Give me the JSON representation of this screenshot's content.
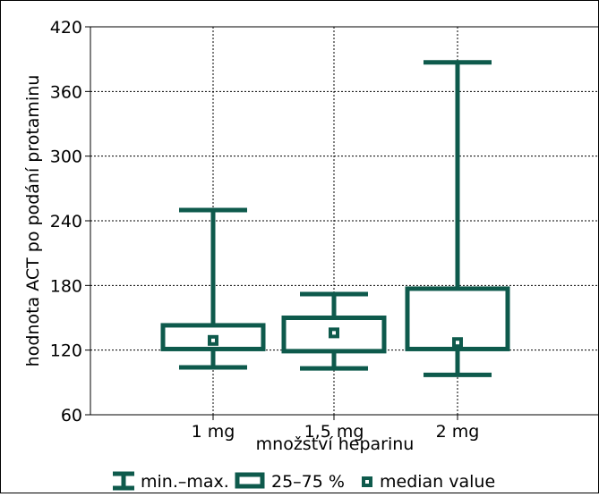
{
  "chart_data": {
    "type": "boxplot",
    "title": "",
    "xlabel": "množství heparinu",
    "ylabel": "hodnota ACT po podání protaminu",
    "ylim": [
      60,
      420
    ],
    "yticks": [
      60,
      120,
      180,
      240,
      300,
      360,
      420
    ],
    "grid": true,
    "categories": [
      "1 mg",
      "1,5 mg",
      "2 mg"
    ],
    "boxes": [
      {
        "category": "1 mg",
        "min": 104,
        "q1": 121,
        "median": 129,
        "q3": 143,
        "max": 250
      },
      {
        "category": "1,5 mg",
        "min": 103,
        "q1": 119,
        "median": 136,
        "q3": 150,
        "max": 172
      },
      {
        "category": "2 mg",
        "min": 97,
        "q1": 121,
        "median": 127,
        "q3": 177,
        "max": 387
      }
    ],
    "legend": {
      "placement": "bottom",
      "items": [
        {
          "key": "whisker",
          "label": "min.–max."
        },
        {
          "key": "box",
          "label": "25–75 %"
        },
        {
          "key": "median",
          "label": "median value"
        }
      ]
    },
    "colors": {
      "series": "#0e5a4c",
      "axis": "#000000",
      "grid": "#000000"
    }
  }
}
